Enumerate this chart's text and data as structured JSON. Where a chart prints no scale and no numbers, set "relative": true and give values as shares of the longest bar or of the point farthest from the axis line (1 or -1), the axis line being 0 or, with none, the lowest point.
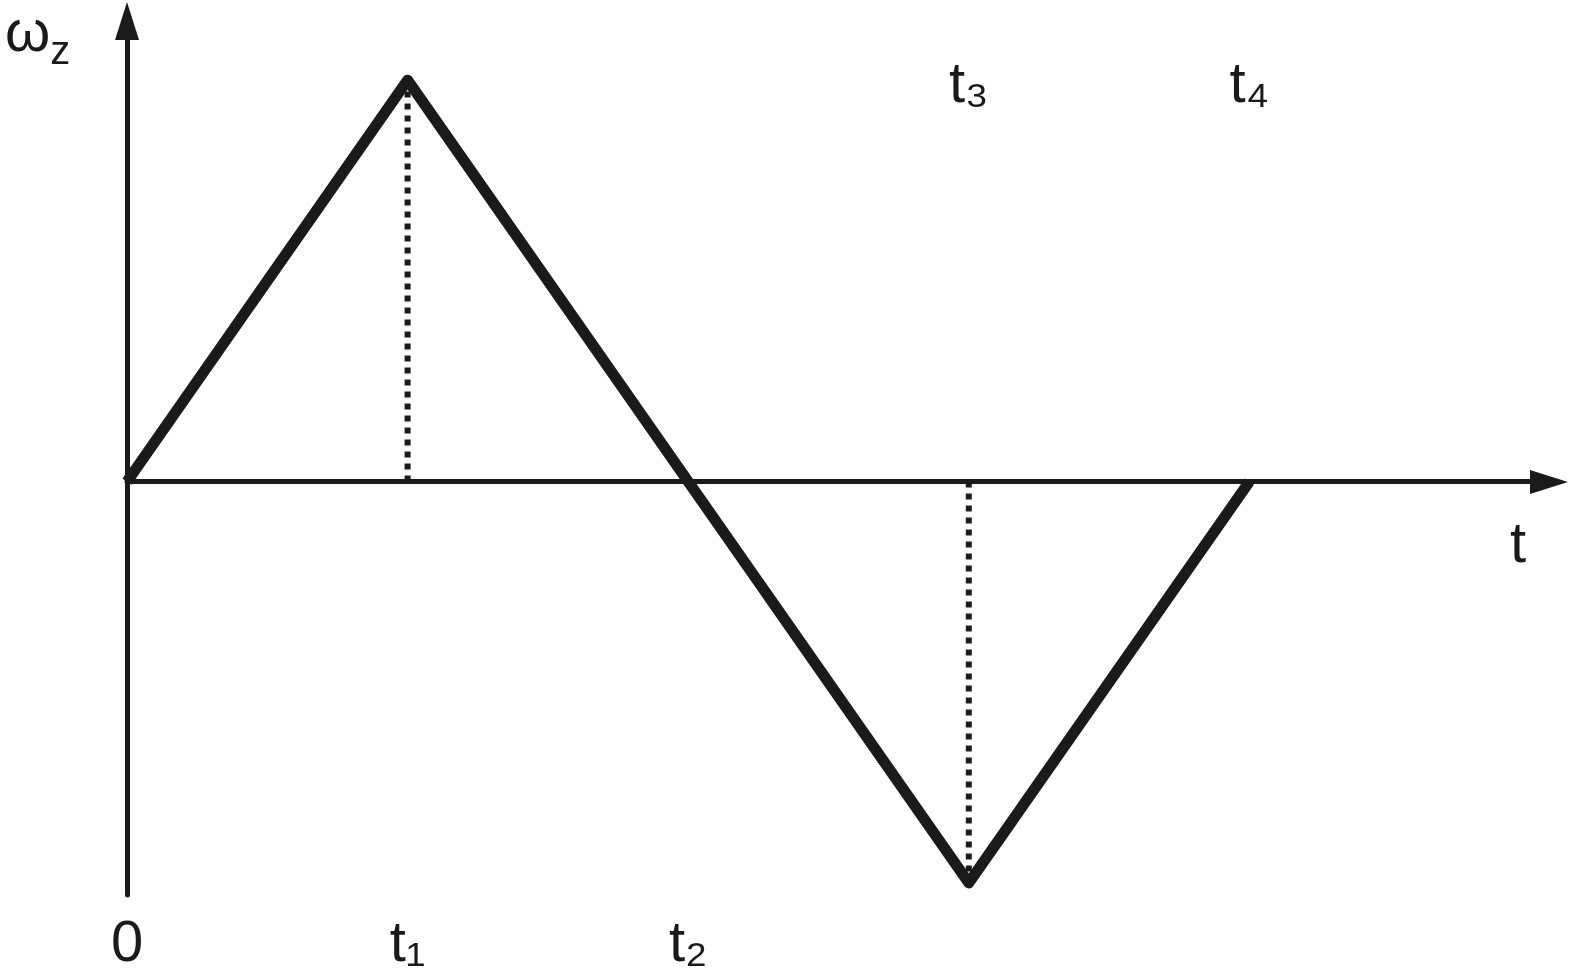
{
  "chart_data": {
    "type": "line",
    "relative": true,
    "xlabel": "t",
    "ylabel": "ω$_{z}$",
    "categories": [
      "0",
      "t₁",
      "t₂",
      "t₃",
      "t₄",
      null
    ],
    "series": [
      {
        "color": "#1a1a1a",
        "values": [
          0,
          1,
          0,
          -1,
          0,
          null
        ],
        "line_style": "solid"
      },
      {
        "color": "#1a1a1a",
        "x": [
          "t₁",
          "t₁"
        ],
        "values": [
          0,
          1
        ],
        "line_style": "dotted"
      },
      {
        "color": "#1a1a1a",
        "x": [
          "t₃",
          "t₃"
        ],
        "values": [
          0,
          -1
        ],
        "line_style": "dotted"
      }
    ],
    "marker": "none",
    "grid": false
  }
}
